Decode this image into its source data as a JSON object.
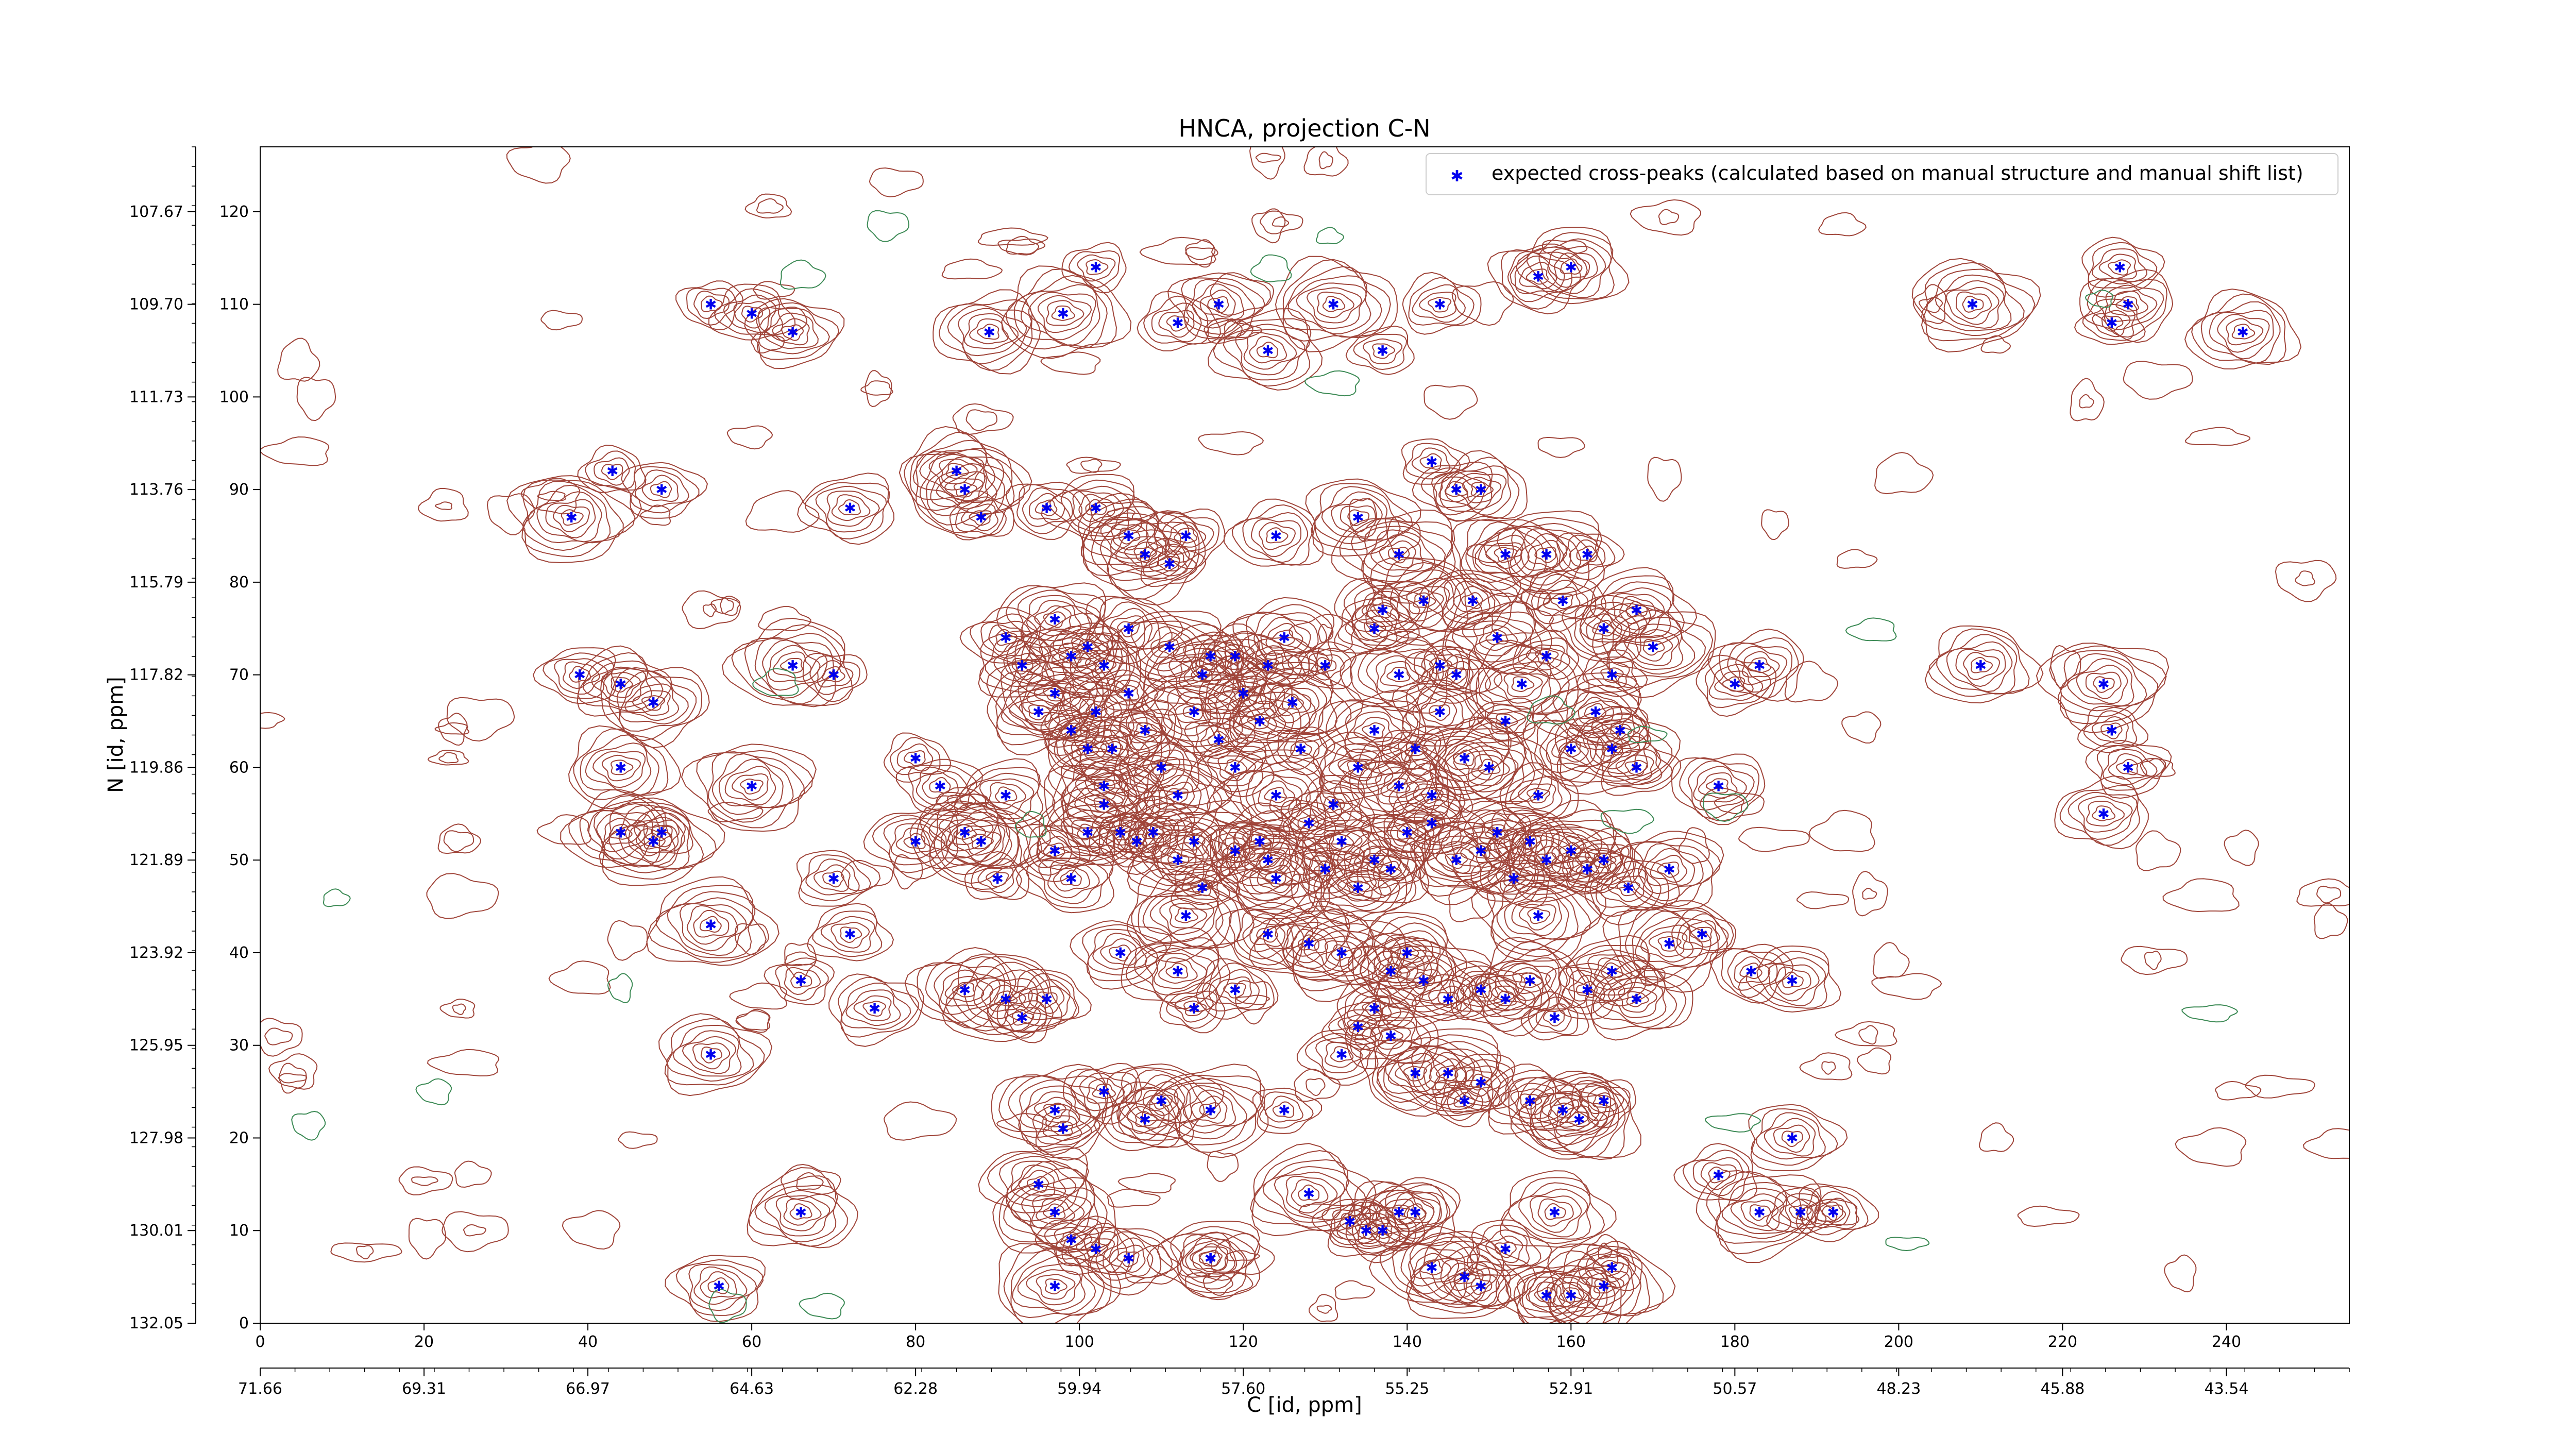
{
  "chart_data": {
    "type": "scatter",
    "title": "HNCA, projection C-N",
    "xlabel": "C [id, ppm]",
    "ylabel": "N [id, ppm]",
    "xlim": [
      0,
      255
    ],
    "ylim": [
      0,
      127
    ],
    "x_ticks": [
      0,
      20,
      40,
      60,
      80,
      100,
      120,
      140,
      160,
      180,
      200,
      220,
      240
    ],
    "y_ticks": [
      0,
      10,
      20,
      30,
      40,
      50,
      60,
      70,
      80,
      90,
      100,
      110,
      120
    ],
    "x_secondary_tick_labels": [
      "71.66",
      "69.31",
      "66.97",
      "64.63",
      "62.28",
      "59.94",
      "57.60",
      "55.25",
      "52.91",
      "50.57",
      "48.23",
      "45.88",
      "43.54"
    ],
    "y_secondary_tick_labels": [
      "132.05",
      "130.01",
      "127.98",
      "125.95",
      "123.92",
      "121.89",
      "119.86",
      "117.82",
      "115.79",
      "113.76",
      "111.73",
      "109.70",
      "107.67"
    ],
    "legend": {
      "entries": [
        "expected cross-peaks (calculated based on manual structure and manual shift list)"
      ],
      "placement": "top-right"
    },
    "grid": false,
    "colors": {
      "marker": "#0000ee",
      "contour_positive": "#a0453a",
      "contour_negative": "#3c8a55"
    },
    "series": [
      {
        "name": "expected cross-peaks (calculated based on manual structure and manual shift list)",
        "points": [
          [
            55,
            110
          ],
          [
            60,
            109
          ],
          [
            65,
            107
          ],
          [
            89,
            107
          ],
          [
            98,
            109
          ],
          [
            102,
            114
          ],
          [
            112,
            108
          ],
          [
            117,
            110
          ],
          [
            123,
            105
          ],
          [
            131,
            110
          ],
          [
            137,
            105
          ],
          [
            144,
            110
          ],
          [
            156,
            113
          ],
          [
            160,
            114
          ],
          [
            209,
            110
          ],
          [
            226,
            108
          ],
          [
            227,
            114
          ],
          [
            228,
            110
          ],
          [
            242,
            107
          ],
          [
            38,
            87
          ],
          [
            43,
            92
          ],
          [
            49,
            90
          ],
          [
            72,
            88
          ],
          [
            85,
            92
          ],
          [
            86,
            90
          ],
          [
            88,
            87
          ],
          [
            96,
            88
          ],
          [
            102,
            88
          ],
          [
            106,
            85
          ],
          [
            108,
            83
          ],
          [
            111,
            82
          ],
          [
            113,
            85
          ],
          [
            124,
            85
          ],
          [
            134,
            87
          ],
          [
            139,
            83
          ],
          [
            143,
            93
          ],
          [
            146,
            90
          ],
          [
            149,
            90
          ],
          [
            152,
            83
          ],
          [
            157,
            83
          ],
          [
            162,
            83
          ],
          [
            39,
            70
          ],
          [
            44,
            69
          ],
          [
            48,
            67
          ],
          [
            65,
            71
          ],
          [
            70,
            70
          ],
          [
            91,
            74
          ],
          [
            93,
            71
          ],
          [
            97,
            76
          ],
          [
            99,
            72
          ],
          [
            101,
            73
          ],
          [
            103,
            71
          ],
          [
            106,
            75
          ],
          [
            111,
            73
          ],
          [
            115,
            70
          ],
          [
            116,
            72
          ],
          [
            119,
            72
          ],
          [
            123,
            71
          ],
          [
            125,
            74
          ],
          [
            126,
            67
          ],
          [
            130,
            71
          ],
          [
            136,
            75
          ],
          [
            137,
            77
          ],
          [
            139,
            70
          ],
          [
            142,
            78
          ],
          [
            144,
            71
          ],
          [
            146,
            70
          ],
          [
            148,
            78
          ],
          [
            151,
            74
          ],
          [
            154,
            69
          ],
          [
            157,
            72
          ],
          [
            159,
            78
          ],
          [
            164,
            75
          ],
          [
            168,
            77
          ],
          [
            170,
            73
          ],
          [
            165,
            70
          ],
          [
            180,
            69
          ],
          [
            183,
            71
          ],
          [
            210,
            71
          ],
          [
            225,
            69
          ],
          [
            226,
            64
          ],
          [
            228,
            60
          ],
          [
            225,
            55
          ],
          [
            44,
            60
          ],
          [
            60,
            58
          ],
          [
            80,
            61
          ],
          [
            83,
            58
          ],
          [
            91,
            57
          ],
          [
            95,
            66
          ],
          [
            97,
            68
          ],
          [
            99,
            64
          ],
          [
            101,
            62
          ],
          [
            102,
            66
          ],
          [
            103,
            58
          ],
          [
            104,
            62
          ],
          [
            106,
            68
          ],
          [
            108,
            64
          ],
          [
            110,
            60
          ],
          [
            112,
            57
          ],
          [
            114,
            66
          ],
          [
            117,
            63
          ],
          [
            119,
            60
          ],
          [
            120,
            68
          ],
          [
            122,
            65
          ],
          [
            124,
            57
          ],
          [
            127,
            62
          ],
          [
            131,
            56
          ],
          [
            134,
            60
          ],
          [
            136,
            64
          ],
          [
            139,
            58
          ],
          [
            141,
            62
          ],
          [
            143,
            57
          ],
          [
            144,
            66
          ],
          [
            147,
            61
          ],
          [
            150,
            60
          ],
          [
            152,
            65
          ],
          [
            156,
            57
          ],
          [
            160,
            62
          ],
          [
            163,
            66
          ],
          [
            165,
            62
          ],
          [
            166,
            64
          ],
          [
            168,
            60
          ],
          [
            178,
            58
          ],
          [
            44,
            53
          ],
          [
            48,
            52
          ],
          [
            49,
            53
          ],
          [
            70,
            48
          ],
          [
            80,
            52
          ],
          [
            86,
            53
          ],
          [
            88,
            52
          ],
          [
            90,
            48
          ],
          [
            97,
            51
          ],
          [
            99,
            48
          ],
          [
            101,
            53
          ],
          [
            103,
            56
          ],
          [
            105,
            53
          ],
          [
            107,
            52
          ],
          [
            109,
            53
          ],
          [
            112,
            50
          ],
          [
            114,
            52
          ],
          [
            115,
            47
          ],
          [
            119,
            51
          ],
          [
            122,
            52
          ],
          [
            123,
            50
          ],
          [
            124,
            48
          ],
          [
            128,
            54
          ],
          [
            130,
            49
          ],
          [
            132,
            52
          ],
          [
            134,
            47
          ],
          [
            136,
            50
          ],
          [
            138,
            49
          ],
          [
            140,
            53
          ],
          [
            143,
            54
          ],
          [
            146,
            50
          ],
          [
            149,
            51
          ],
          [
            151,
            53
          ],
          [
            153,
            48
          ],
          [
            155,
            52
          ],
          [
            157,
            50
          ],
          [
            160,
            51
          ],
          [
            162,
            49
          ],
          [
            164,
            50
          ],
          [
            167,
            47
          ],
          [
            172,
            49
          ],
          [
            55,
            43
          ],
          [
            66,
            37
          ],
          [
            72,
            42
          ],
          [
            75,
            34
          ],
          [
            86,
            36
          ],
          [
            91,
            35
          ],
          [
            93,
            33
          ],
          [
            96,
            35
          ],
          [
            105,
            40
          ],
          [
            112,
            38
          ],
          [
            113,
            44
          ],
          [
            114,
            34
          ],
          [
            119,
            36
          ],
          [
            123,
            42
          ],
          [
            128,
            41
          ],
          [
            132,
            40
          ],
          [
            134,
            32
          ],
          [
            136,
            34
          ],
          [
            138,
            38
          ],
          [
            140,
            40
          ],
          [
            142,
            37
          ],
          [
            145,
            35
          ],
          [
            149,
            36
          ],
          [
            152,
            35
          ],
          [
            155,
            37
          ],
          [
            156,
            44
          ],
          [
            158,
            33
          ],
          [
            162,
            36
          ],
          [
            165,
            38
          ],
          [
            168,
            35
          ],
          [
            172,
            41
          ],
          [
            176,
            42
          ],
          [
            182,
            38
          ],
          [
            187,
            37
          ],
          [
            55,
            29
          ],
          [
            97,
            23
          ],
          [
            98,
            21
          ],
          [
            103,
            25
          ],
          [
            108,
            22
          ],
          [
            110,
            24
          ],
          [
            116,
            23
          ],
          [
            125,
            23
          ],
          [
            132,
            29
          ],
          [
            138,
            31
          ],
          [
            141,
            27
          ],
          [
            145,
            27
          ],
          [
            147,
            24
          ],
          [
            149,
            26
          ],
          [
            155,
            24
          ],
          [
            159,
            23
          ],
          [
            161,
            22
          ],
          [
            164,
            24
          ],
          [
            178,
            16
          ],
          [
            187,
            20
          ],
          [
            95,
            15
          ],
          [
            97,
            12
          ],
          [
            99,
            9
          ],
          [
            102,
            8
          ],
          [
            106,
            7
          ],
          [
            116,
            7
          ],
          [
            128,
            14
          ],
          [
            133,
            11
          ],
          [
            135,
            10
          ],
          [
            139,
            12
          ],
          [
            143,
            6
          ],
          [
            147,
            5
          ],
          [
            149,
            4
          ],
          [
            152,
            8
          ],
          [
            157,
            3
          ],
          [
            160,
            3
          ],
          [
            164,
            4
          ],
          [
            165,
            6
          ],
          [
            192,
            12
          ],
          [
            56,
            4
          ],
          [
            66,
            12
          ],
          [
            97,
            4
          ],
          [
            116,
            7
          ],
          [
            137,
            10
          ],
          [
            141,
            12
          ],
          [
            158,
            12
          ],
          [
            183,
            12
          ],
          [
            188,
            12
          ]
        ]
      }
    ]
  }
}
